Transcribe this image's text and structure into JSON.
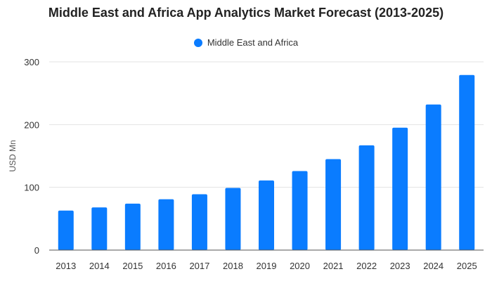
{
  "chart_data": {
    "type": "bar",
    "title": "Middle East and Africa App Analytics Market Forecast (2013-2025)",
    "xlabel": "",
    "ylabel": "USD Mn",
    "categories": [
      "2013",
      "2014",
      "2015",
      "2016",
      "2017",
      "2018",
      "2019",
      "2020",
      "2021",
      "2022",
      "2023",
      "2024",
      "2025"
    ],
    "series": [
      {
        "name": "Middle East and Africa",
        "color": "#0a7cff",
        "values": [
          63,
          68,
          74,
          81,
          89,
          99,
          111,
          126,
          145,
          167,
          195,
          232,
          279
        ]
      }
    ],
    "ylim": [
      0,
      300
    ],
    "yticks": [
      0,
      100,
      200,
      300
    ],
    "grid": true,
    "legend_position": "top-center"
  }
}
